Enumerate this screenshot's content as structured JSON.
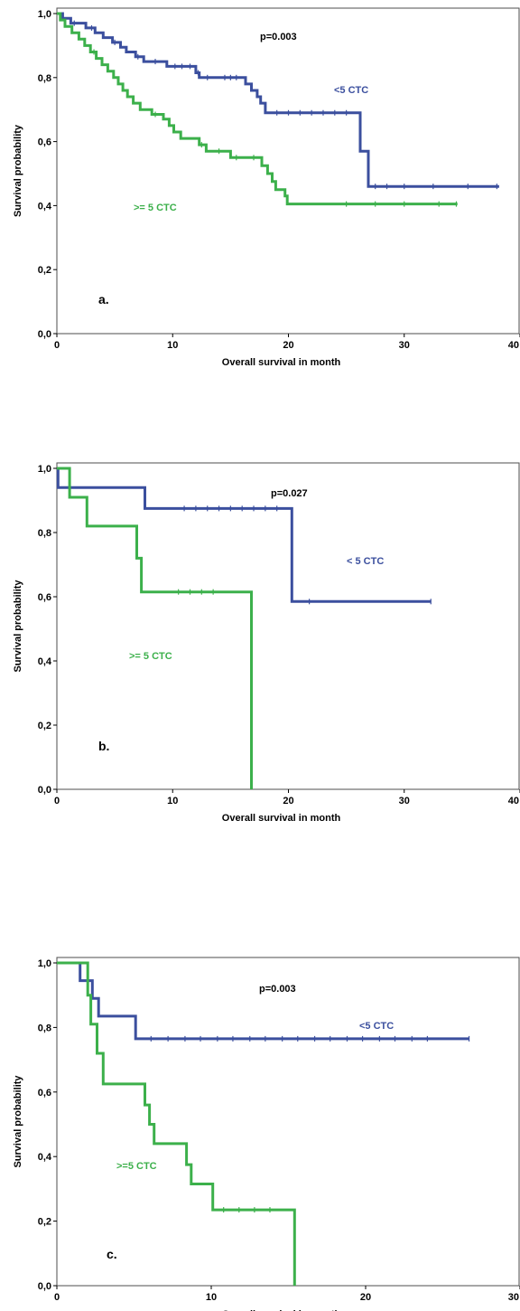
{
  "chart_data": [
    {
      "type": "line",
      "panel_label": "a.",
      "pvalue": "p=0.003",
      "xlabel": "Overall survival in month",
      "ylabel": "Survival probability",
      "xlim": [
        0,
        40
      ],
      "ylim": [
        0,
        1.0
      ],
      "xticks": [
        "0",
        "10",
        "20",
        "30",
        "40"
      ],
      "yticks": [
        "0,0",
        "0,2",
        "0,4",
        "0,6",
        "0,8",
        "1,0"
      ],
      "grid": false,
      "series": [
        {
          "name": "<5 CTC",
          "color": "#3b4f9e",
          "points": [
            [
              0,
              1.0
            ],
            [
              0.5,
              0.985
            ],
            [
              1.2,
              0.97
            ],
            [
              2.5,
              0.955
            ],
            [
              3.3,
              0.94
            ],
            [
              4.0,
              0.925
            ],
            [
              4.8,
              0.91
            ],
            [
              5.5,
              0.895
            ],
            [
              6.0,
              0.88
            ],
            [
              6.8,
              0.865
            ],
            [
              7.5,
              0.85
            ],
            [
              9.5,
              0.835
            ],
            [
              12.0,
              0.815
            ],
            [
              12.3,
              0.8
            ],
            [
              16.3,
              0.78
            ],
            [
              16.8,
              0.76
            ],
            [
              17.3,
              0.74
            ],
            [
              17.6,
              0.72
            ],
            [
              18.0,
              0.69
            ],
            [
              26.2,
              0.57
            ],
            [
              26.9,
              0.46
            ],
            [
              38.2,
              0.46
            ]
          ],
          "censored_x": [
            1.5,
            3.0,
            5.0,
            7.0,
            8.5,
            10.2,
            10.8,
            11.5,
            12.2,
            13.0,
            14.5,
            15.0,
            15.5,
            19.0,
            20.0,
            21.0,
            22.0,
            23.0,
            24.0,
            25.0,
            27.5,
            28.5,
            30.0,
            32.5,
            35.5,
            38.0
          ]
        },
        {
          "name": ">= 5 CTC",
          "color": "#3cb04b",
          "points": [
            [
              0,
              1.0
            ],
            [
              0.3,
              0.98
            ],
            [
              0.7,
              0.96
            ],
            [
              1.3,
              0.94
            ],
            [
              1.9,
              0.92
            ],
            [
              2.4,
              0.9
            ],
            [
              2.9,
              0.88
            ],
            [
              3.4,
              0.86
            ],
            [
              3.9,
              0.84
            ],
            [
              4.4,
              0.82
            ],
            [
              4.9,
              0.8
            ],
            [
              5.3,
              0.78
            ],
            [
              5.7,
              0.76
            ],
            [
              6.1,
              0.74
            ],
            [
              6.6,
              0.72
            ],
            [
              7.2,
              0.7
            ],
            [
              8.2,
              0.685
            ],
            [
              9.2,
              0.67
            ],
            [
              9.7,
              0.65
            ],
            [
              10.1,
              0.63
            ],
            [
              10.7,
              0.61
            ],
            [
              12.3,
              0.59
            ],
            [
              12.9,
              0.57
            ],
            [
              15.0,
              0.55
            ],
            [
              17.7,
              0.525
            ],
            [
              18.2,
              0.5
            ],
            [
              18.6,
              0.475
            ],
            [
              18.9,
              0.45
            ],
            [
              19.7,
              0.43
            ],
            [
              19.9,
              0.405
            ],
            [
              34.6,
              0.405
            ]
          ],
          "censored_x": [
            3.2,
            8.5,
            12.5,
            14.0,
            15.5,
            17.0,
            25.0,
            27.5,
            30.0,
            33.0,
            34.5
          ]
        }
      ]
    },
    {
      "type": "line",
      "panel_label": "b.",
      "pvalue": "p=0.027",
      "xlabel": "Overall survival in month",
      "ylabel": "Survival probability",
      "xlim": [
        0,
        40
      ],
      "ylim": [
        0,
        1.0
      ],
      "xticks": [
        "0",
        "10",
        "20",
        "30",
        "40"
      ],
      "yticks": [
        "0,0",
        "0,2",
        "0,4",
        "0,6",
        "0,8",
        "1,0"
      ],
      "grid": false,
      "series": [
        {
          "name": "< 5 CTC",
          "color": "#3b4f9e",
          "points": [
            [
              0,
              1.0
            ],
            [
              0.1,
              0.94
            ],
            [
              7.6,
              0.94
            ],
            [
              7.6,
              0.875
            ],
            [
              20.3,
              0.875
            ],
            [
              20.3,
              0.585
            ],
            [
              32.3,
              0.585
            ]
          ],
          "censored_x": [
            11.0,
            12.0,
            13.0,
            14.0,
            15.0,
            16.0,
            17.0,
            18.0,
            19.0,
            21.8,
            32.3
          ]
        },
        {
          "name": ">= 5 CTC",
          "color": "#3cb04b",
          "points": [
            [
              0,
              1.0
            ],
            [
              1.1,
              1.0
            ],
            [
              1.1,
              0.91
            ],
            [
              2.6,
              0.91
            ],
            [
              2.6,
              0.82
            ],
            [
              6.9,
              0.82
            ],
            [
              6.9,
              0.72
            ],
            [
              7.3,
              0.72
            ],
            [
              7.3,
              0.615
            ],
            [
              16.8,
              0.615
            ],
            [
              16.8,
              0.0
            ]
          ],
          "censored_x": [
            10.5,
            11.5,
            12.5,
            13.5
          ]
        }
      ]
    },
    {
      "type": "line",
      "panel_label": "c.",
      "pvalue": "p=0.003",
      "xlabel": "Overall survival in month",
      "ylabel": "Survival probability",
      "xlim": [
        0,
        30
      ],
      "ylim": [
        0,
        1.0
      ],
      "xticks": [
        "0",
        "10",
        "20",
        "30"
      ],
      "yticks": [
        "0,0",
        "0,2",
        "0,4",
        "0,6",
        "0,8",
        "1,0"
      ],
      "grid": false,
      "series": [
        {
          "name": "<5 CTC",
          "color": "#3b4f9e",
          "points": [
            [
              0,
              1.0
            ],
            [
              1.5,
              1.0
            ],
            [
              1.5,
              0.945
            ],
            [
              2.3,
              0.945
            ],
            [
              2.3,
              0.89
            ],
            [
              2.7,
              0.89
            ],
            [
              2.7,
              0.835
            ],
            [
              5.1,
              0.835
            ],
            [
              5.1,
              0.765
            ],
            [
              26.7,
              0.765
            ]
          ],
          "censored_x": [
            6.1,
            7.2,
            8.3,
            9.3,
            10.4,
            11.4,
            12.5,
            13.5,
            14.6,
            15.6,
            16.7,
            17.7,
            18.8,
            19.8,
            20.9,
            21.9,
            23.0,
            24.0,
            26.7
          ]
        },
        {
          "name": ">=5 CTC",
          "color": "#3cb04b",
          "points": [
            [
              0,
              1.0
            ],
            [
              2.0,
              1.0
            ],
            [
              2.0,
              0.9
            ],
            [
              2.2,
              0.9
            ],
            [
              2.2,
              0.81
            ],
            [
              2.6,
              0.81
            ],
            [
              2.6,
              0.72
            ],
            [
              3.0,
              0.72
            ],
            [
              3.0,
              0.625
            ],
            [
              5.7,
              0.625
            ],
            [
              5.7,
              0.56
            ],
            [
              6.0,
              0.56
            ],
            [
              6.0,
              0.5
            ],
            [
              6.3,
              0.5
            ],
            [
              6.3,
              0.44
            ],
            [
              8.4,
              0.44
            ],
            [
              8.4,
              0.375
            ],
            [
              8.7,
              0.375
            ],
            [
              8.7,
              0.315
            ],
            [
              10.1,
              0.315
            ],
            [
              10.1,
              0.235
            ],
            [
              15.4,
              0.235
            ],
            [
              15.4,
              0.0
            ]
          ],
          "censored_x": [
            10.8,
            11.8,
            12.8,
            13.8
          ]
        }
      ]
    }
  ]
}
